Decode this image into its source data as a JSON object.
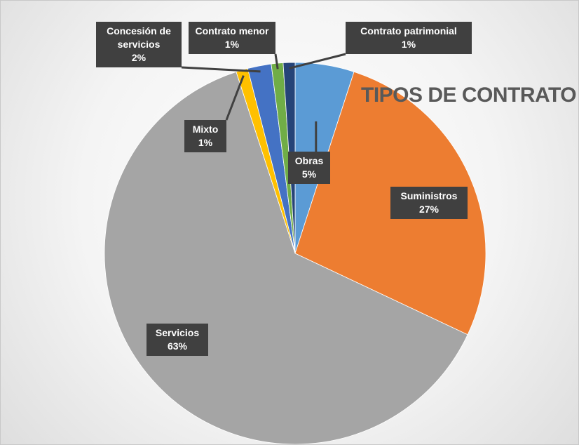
{
  "chart_data": {
    "type": "pie",
    "title": "TIPOS DE CONTRATO",
    "categories": [
      "Obras",
      "Suministros",
      "Servicios",
      "Mixto",
      "Concesión de servicios",
      "Contrato menor",
      "Contrato patrimonial"
    ],
    "values": [
      5,
      27,
      63,
      1,
      2,
      1,
      1
    ],
    "value_labels": [
      "5%",
      "27%",
      "63%",
      "1%",
      "2%",
      "1%",
      "1%"
    ],
    "colors": [
      "#5B9BD5",
      "#ED7D31",
      "#A5A5A5",
      "#FFC000",
      "#4472C4",
      "#70AD47",
      "#264478"
    ]
  }
}
